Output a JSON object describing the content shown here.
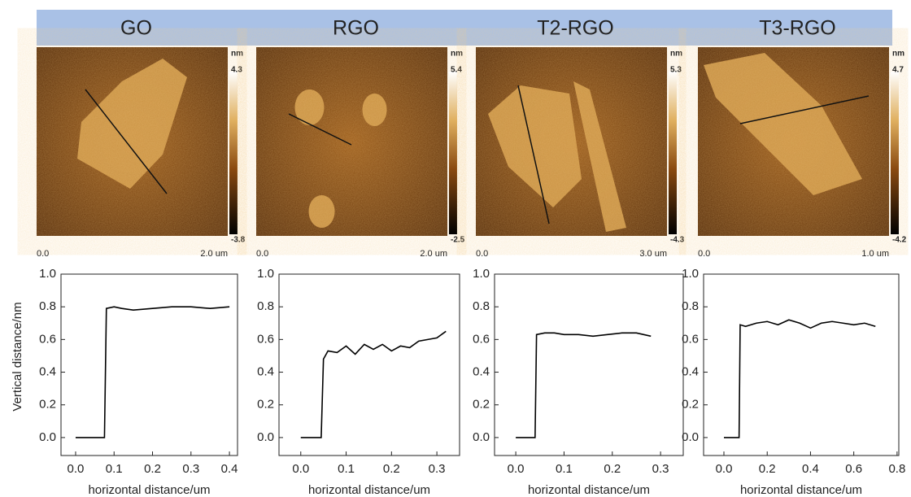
{
  "images": [
    {
      "title": "GO",
      "unit": "nm",
      "max": "4.3",
      "min": "-3.8",
      "start": "0.0",
      "end": "2.0 um"
    },
    {
      "title": "RGO",
      "unit": "nm",
      "max": "5.4",
      "min": "-2.5",
      "start": "0.0",
      "end": "2.0 um"
    },
    {
      "title": "T2-RGO",
      "unit": "nm",
      "max": "5.3",
      "min": "-4.3",
      "start": "0.0",
      "end": "3.0 um"
    },
    {
      "title": "T3-RGO",
      "unit": "nm",
      "max": "4.7",
      "min": "-4.2",
      "start": "0.0",
      "end": "1.0 um"
    }
  ],
  "chart_data": [
    {
      "type": "line",
      "y_label": "Vertical distance/nm",
      "x_label": "horizontal distance/um",
      "x": [
        0,
        0.075,
        0.08,
        0.1,
        0.12,
        0.15,
        0.2,
        0.25,
        0.3,
        0.35,
        0.4
      ],
      "series": [
        {
          "color": "#000000",
          "values": [
            0,
            0,
            0.79,
            0.8,
            0.79,
            0.78,
            0.79,
            0.8,
            0.8,
            0.79,
            0.8
          ]
        }
      ],
      "xlim": [
        -0.038,
        0.421
      ],
      "ylim": [
        -0.11,
        1.0
      ],
      "xticks": [
        {
          "value": 0,
          "label": "0.0"
        },
        0.1,
        0.2,
        0.3,
        0.4
      ],
      "yticks": [
        {
          "value": 0,
          "label": "0.0"
        },
        0.2,
        0.4,
        0.6,
        0.8,
        {
          "value": 1,
          "label": "1.0"
        }
      ]
    },
    {
      "type": "line",
      "x_label": "horizontal distance/um",
      "x": [
        0,
        0.045,
        0.05,
        0.06,
        0.08,
        0.1,
        0.12,
        0.14,
        0.16,
        0.18,
        0.2,
        0.22,
        0.24,
        0.26,
        0.28,
        0.3,
        0.32
      ],
      "series": [
        {
          "color": "#000000",
          "values": [
            0,
            0,
            0.48,
            0.53,
            0.52,
            0.56,
            0.51,
            0.57,
            0.54,
            0.57,
            0.53,
            0.56,
            0.55,
            0.59,
            0.6,
            0.61,
            0.65
          ]
        }
      ],
      "xlim": [
        -0.048,
        0.35
      ],
      "ylim": [
        -0.11,
        1.0
      ],
      "xticks": [
        {
          "value": 0,
          "label": "0.0"
        },
        0.1,
        0.2,
        0.3
      ],
      "yticks": [
        {
          "value": 0,
          "label": "0.0"
        },
        0.2,
        0.4,
        0.6,
        0.8,
        {
          "value": 1,
          "label": "1.0"
        }
      ]
    },
    {
      "type": "line",
      "x_label": "horizontal distance/um",
      "x": [
        0,
        0.04,
        0.043,
        0.06,
        0.08,
        0.1,
        0.13,
        0.16,
        0.19,
        0.22,
        0.25,
        0.28
      ],
      "series": [
        {
          "color": "#000000",
          "values": [
            0,
            0,
            0.63,
            0.64,
            0.64,
            0.63,
            0.63,
            0.62,
            0.63,
            0.64,
            0.64,
            0.62
          ]
        }
      ],
      "xlim": [
        -0.044,
        0.347
      ],
      "ylim": [
        -0.11,
        1.0
      ],
      "xticks": [
        {
          "value": 0,
          "label": "0.0"
        },
        0.1,
        0.2,
        0.3
      ],
      "yticks": [
        {
          "value": 0,
          "label": "0.0"
        },
        0.2,
        0.4,
        0.6,
        0.8,
        {
          "value": 1,
          "label": "1.0"
        }
      ]
    },
    {
      "type": "line",
      "x_label": "horizontal distance/um",
      "x": [
        0,
        0.07,
        0.075,
        0.1,
        0.15,
        0.2,
        0.25,
        0.3,
        0.35,
        0.4,
        0.45,
        0.5,
        0.55,
        0.6,
        0.65,
        0.7
      ],
      "series": [
        {
          "color": "#000000",
          "values": [
            0,
            0,
            0.69,
            0.68,
            0.7,
            0.71,
            0.69,
            0.72,
            0.7,
            0.67,
            0.7,
            0.71,
            0.7,
            0.69,
            0.7,
            0.68
          ]
        }
      ],
      "xlim": [
        -0.094,
        0.808
      ],
      "ylim": [
        -0.11,
        1.0
      ],
      "xticks": [
        {
          "value": 0,
          "label": "0.0"
        },
        0.2,
        0.4,
        0.6,
        0.8
      ],
      "yticks": [
        {
          "value": 0,
          "label": "0.0"
        },
        0.2,
        0.4,
        0.6,
        0.8,
        {
          "value": 1,
          "label": "1.0"
        }
      ]
    }
  ]
}
